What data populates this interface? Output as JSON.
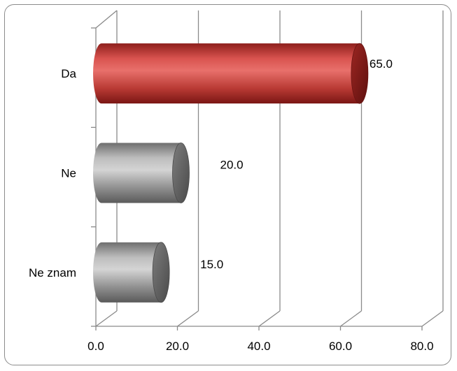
{
  "chart_data": {
    "type": "bar",
    "orientation": "horizontal",
    "style": "3d-cylinder",
    "title": "",
    "xlabel": "",
    "ylabel": "",
    "categories": [
      "Da",
      "Ne",
      "Ne znam"
    ],
    "values": [
      65.0,
      20.0,
      15.0
    ],
    "data_labels": [
      "65.0",
      "20.0",
      "15.0"
    ],
    "xlim": [
      0,
      80
    ],
    "x_ticks": [
      0,
      20,
      40,
      60,
      80
    ],
    "x_tick_labels": [
      "0.0",
      "20.0",
      "40.0",
      "60.0",
      "80.0"
    ],
    "grid": true,
    "legend": "none",
    "colors": {
      "highlight": "#c0392b",
      "other": "#9a9a9a"
    },
    "highlight_index": 0
  }
}
